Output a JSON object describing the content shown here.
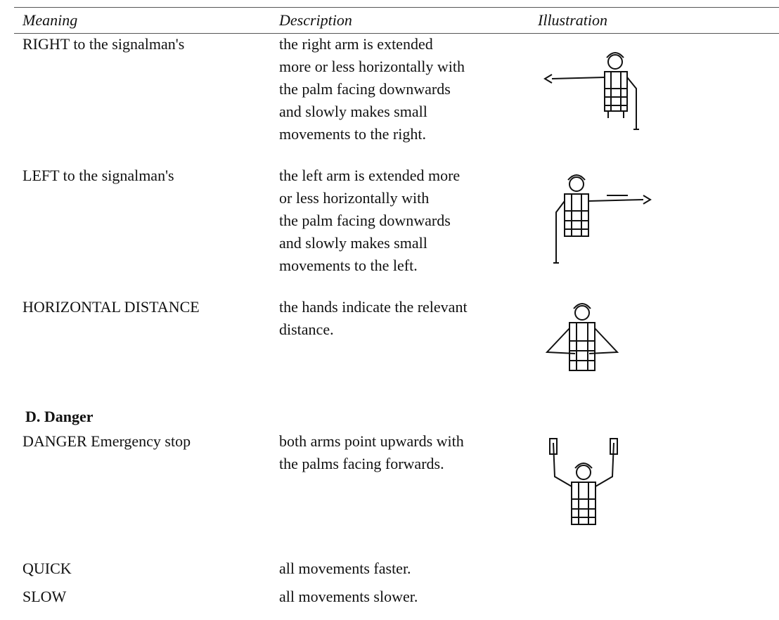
{
  "table": {
    "header": [
      "Meaning",
      "Description",
      "Illustration"
    ],
    "rows": [
      {
        "meaning": "RIGHT to the signalman's",
        "description": [
          "the right arm is extended",
          "more or less horizontally with",
          "the palm facing downwards",
          "and slowly makes small",
          "movements to the right."
        ]
      },
      {
        "meaning": "LEFT to the signalman's",
        "description": [
          "the left arm is extended more",
          "or less horizontally with",
          "the palm facing downwards",
          "and slowly makes small",
          "movements to the left."
        ]
      },
      {
        "meaning": "HORIZONTAL DISTANCE",
        "description": [
          "the hands indicate the relevant",
          "distance."
        ]
      }
    ],
    "section": "D. Danger",
    "section_rows": [
      {
        "meaning": "DANGER Emergency stop",
        "description": [
          "both arms point upwards with",
          "the palms facing forwards."
        ]
      },
      {
        "meaning": "QUICK",
        "description": [
          "all movements faster."
        ]
      },
      {
        "meaning": "SLOW",
        "description": [
          "all movements slower."
        ]
      }
    ]
  }
}
